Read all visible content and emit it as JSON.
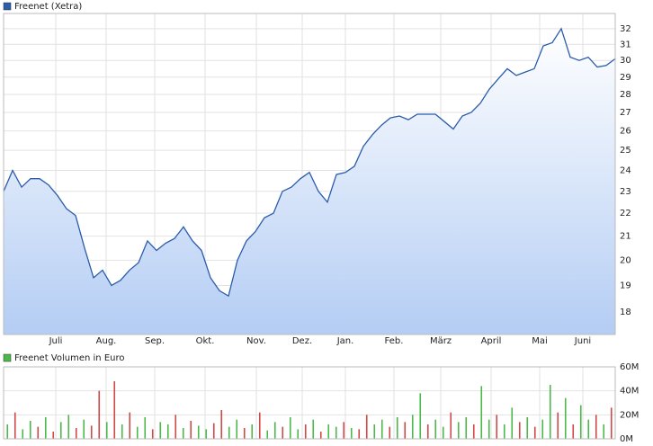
{
  "chart_data": [
    {
      "type": "area",
      "log": true,
      "grid": true,
      "series": [
        {
          "name": "Freenet (Xetra)",
          "color": "#2a5caa",
          "values": [
            23.0,
            24.0,
            23.2,
            23.6,
            23.6,
            23.3,
            22.8,
            22.2,
            21.9,
            20.5,
            19.3,
            19.6,
            19.0,
            19.2,
            19.6,
            19.9,
            20.8,
            20.4,
            20.7,
            20.9,
            21.4,
            20.8,
            20.4,
            19.3,
            18.8,
            18.6,
            20.0,
            20.8,
            21.2,
            21.8,
            22.0,
            23.0,
            23.2,
            23.6,
            23.9,
            23.0,
            22.5,
            23.8,
            23.9,
            24.2,
            25.2,
            25.8,
            26.3,
            26.7,
            26.8,
            26.6,
            26.9,
            26.9,
            26.9,
            26.5,
            26.1,
            26.8,
            27.0,
            27.5,
            28.3,
            28.9,
            29.5,
            29.1,
            29.3,
            29.5,
            30.9,
            31.1,
            32.0,
            30.2,
            30.0,
            30.2,
            29.6,
            29.7,
            30.1
          ]
        }
      ],
      "xlim": [
        0,
        68
      ],
      "xticks": [
        {
          "value": 5.8,
          "label": "Juli"
        },
        {
          "value": 11.4,
          "label": "Aug."
        },
        {
          "value": 16.8,
          "label": "Sep."
        },
        {
          "value": 22.4,
          "label": "Okt."
        },
        {
          "value": 28.1,
          "label": "Nov."
        },
        {
          "value": 33.2,
          "label": "Dez."
        },
        {
          "value": 38,
          "label": "Jan."
        },
        {
          "value": 43.4,
          "label": "Feb."
        },
        {
          "value": 48.6,
          "label": "März"
        },
        {
          "value": 54.2,
          "label": "April"
        },
        {
          "value": 59.6,
          "label": "Mai"
        },
        {
          "value": 64.4,
          "label": "Juni"
        }
      ],
      "ylim": [
        17.2,
        33
      ],
      "yticks": [
        18,
        19,
        20,
        21,
        22,
        23,
        24,
        25,
        26,
        27,
        28,
        29,
        30,
        31,
        32
      ]
    },
    {
      "type": "bar",
      "grid": true,
      "series": [
        {
          "name": "Freenet Volumen in Euro",
          "color": "#4cb84c",
          "values": [
            12,
            22,
            8,
            15,
            10,
            18,
            6,
            14,
            20,
            9,
            16,
            11,
            40,
            14,
            48,
            12,
            22,
            10,
            18,
            8,
            14,
            12,
            20,
            9,
            15,
            11,
            8,
            13,
            24,
            10,
            16,
            9,
            12,
            22,
            7,
            14,
            10,
            18,
            8,
            12,
            16,
            6,
            12,
            10,
            14,
            9,
            8,
            20,
            12,
            16,
            10,
            18,
            14,
            20,
            38,
            12,
            16,
            10,
            22,
            14,
            18,
            12,
            44,
            16,
            20,
            12,
            26,
            14,
            18,
            10,
            16,
            45,
            22,
            34,
            12,
            28,
            16,
            20,
            12,
            26
          ],
          "colors": [
            "#4cb84c",
            "#d04848",
            "#4cb84c",
            "#4cb84c",
            "#d04848",
            "#4cb84c",
            "#d04848",
            "#4cb84c",
            "#4cb84c",
            "#d04848",
            "#4cb84c",
            "#d04848",
            "#d04848",
            "#4cb84c",
            "#d04848",
            "#4cb84c",
            "#d04848",
            "#4cb84c",
            "#4cb84c",
            "#d04848",
            "#4cb84c",
            "#4cb84c",
            "#d04848",
            "#4cb84c",
            "#d04848",
            "#4cb84c",
            "#4cb84c",
            "#d04848",
            "#d04848",
            "#4cb84c",
            "#4cb84c",
            "#d04848",
            "#4cb84c",
            "#d04848",
            "#4cb84c",
            "#4cb84c",
            "#d04848",
            "#4cb84c",
            "#4cb84c",
            "#d04848",
            "#4cb84c",
            "#d04848",
            "#4cb84c",
            "#4cb84c",
            "#d04848",
            "#4cb84c",
            "#d04848",
            "#d04848",
            "#4cb84c",
            "#4cb84c",
            "#d04848",
            "#4cb84c",
            "#d04848",
            "#4cb84c",
            "#4cb84c",
            "#d04848",
            "#4cb84c",
            "#4cb84c",
            "#d04848",
            "#4cb84c",
            "#4cb84c",
            "#d04848",
            "#4cb84c",
            "#4cb84c",
            "#d04848",
            "#4cb84c",
            "#4cb84c",
            "#d04848",
            "#4cb84c",
            "#d04848",
            "#4cb84c",
            "#4cb84c",
            "#d04848",
            "#4cb84c",
            "#d04848",
            "#4cb84c",
            "#4cb84c",
            "#d04848",
            "#4cb84c",
            "#d04848"
          ]
        }
      ],
      "ylim": [
        0,
        60
      ],
      "yticks": [
        {
          "value": 0,
          "label": "0M"
        },
        {
          "value": 20,
          "label": "20M"
        },
        {
          "value": 40,
          "label": "40M"
        },
        {
          "value": 60,
          "label": "60M"
        }
      ]
    }
  ]
}
